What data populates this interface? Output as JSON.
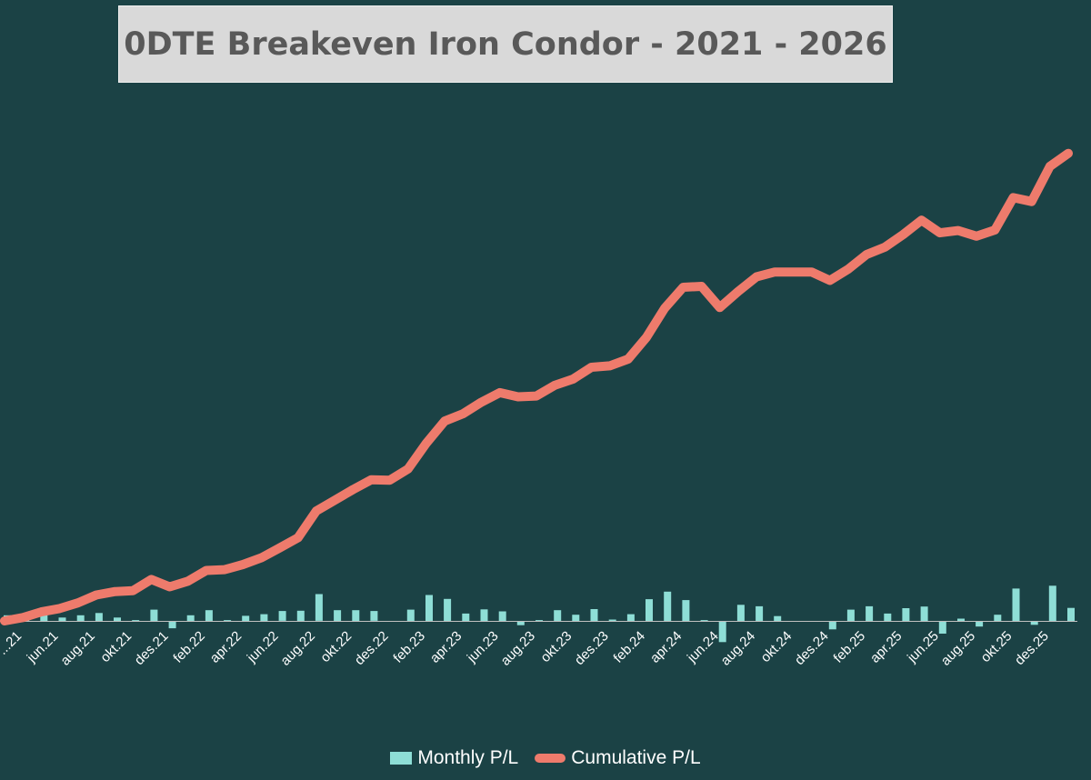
{
  "chart_data": {
    "type": "bar",
    "title": "0DTE Breakeven Iron Condor - 2021 - 2026",
    "xlabel": "",
    "ylabel": "",
    "grid": false,
    "legend_placement": "bottom",
    "tick_labels": [
      "...21",
      "jun.21",
      "aug.21",
      "okt.21",
      "des.21",
      "feb.22",
      "apr.22",
      "jun.22",
      "aug.22",
      "okt.22",
      "des.22",
      "feb.23",
      "apr.23",
      "jun.23",
      "aug.23",
      "okt.23",
      "des.23",
      "feb.24",
      "apr.24",
      "jun.24",
      "aug.24",
      "okt.24",
      "des.24",
      "feb.25",
      "apr.25",
      "jun.25",
      "aug.25",
      "okt.25",
      "des.25"
    ],
    "series": [
      {
        "name": "Monthly P/L",
        "type": "bar",
        "values": [
          2,
          1.2,
          2,
          1.2,
          2,
          2.8,
          1.2,
          0.3,
          4,
          -2.6,
          2,
          3.8,
          0.3,
          1.8,
          2.4,
          3.5,
          3.6,
          9.5,
          3.8,
          3.8,
          3.5,
          -0.2,
          4,
          9.2,
          7.8,
          2.6,
          4.1,
          3.4,
          -1.5,
          0.3,
          3.8,
          2.2,
          4.2,
          0.5,
          2.4,
          7.7,
          10.4,
          7.4,
          0.3,
          -7.5,
          5.7,
          5.2,
          1.7,
          0,
          0,
          -3,
          4,
          5.2,
          2.6,
          4.5,
          5.1,
          -4.5,
          0.8,
          -2,
          2.2,
          11.5,
          -1.4,
          12.5,
          4.6
        ]
      },
      {
        "name": "Cumulative P/L",
        "type": "line",
        "values": [
          0,
          1.2,
          3.2,
          4.4,
          6.4,
          9.2,
          10.4,
          10.7,
          14.7,
          12.1,
          14.1,
          17.9,
          18.2,
          20,
          22.4,
          25.9,
          29.5,
          39,
          42.8,
          46.6,
          50.1,
          49.9,
          53.9,
          63.1,
          70.9,
          73.5,
          77.6,
          81,
          79.5,
          79.8,
          83.6,
          85.8,
          90,
          90.5,
          92.9,
          100.6,
          111,
          118.4,
          118.7,
          111.2,
          116.9,
          122.1,
          123.8,
          123.8,
          123.8,
          120.8,
          124.8,
          130,
          132.6,
          137.1,
          142.2,
          137.7,
          138.5,
          136.5,
          138.7,
          150.2,
          148.8,
          161.3,
          165.9
        ]
      }
    ]
  },
  "colors": {
    "background": "#1b4245",
    "bar": "#8eded6",
    "line": "#ee7b6c",
    "title_box": "#d9d9d9",
    "title_text": "#595959",
    "axis": "#bfbfbf",
    "tick_text": "#ffffff"
  }
}
